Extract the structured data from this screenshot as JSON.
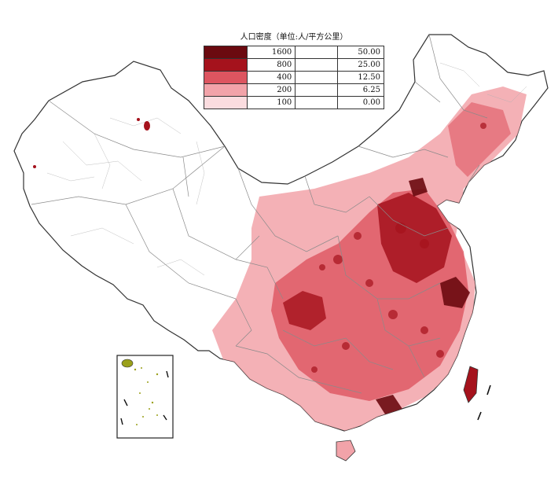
{
  "legend": {
    "title": "人口密度（单位:人/平方公里）",
    "rows": [
      {
        "density": "1600",
        "value": "50.00",
        "color": "#6b0a10"
      },
      {
        "density": "800",
        "value": "25.00",
        "color": "#a5121c"
      },
      {
        "density": "400",
        "value": "12.50",
        "color": "#dd5560"
      },
      {
        "density": "200",
        "value": "6.25",
        "color": "#f2a3a9"
      },
      {
        "density": "100",
        "value": "0.00",
        "color": "#fbdcdf"
      }
    ]
  },
  "colors": {
    "background": "#ffffff",
    "border": "#8a8a8a",
    "outline": "#333333",
    "low": "#fbdcdf",
    "light": "#f2a3a9",
    "mid": "#dd5560",
    "high": "#a5121c",
    "veryhigh": "#6b0a10",
    "island_dots": "#9aa01a"
  }
}
